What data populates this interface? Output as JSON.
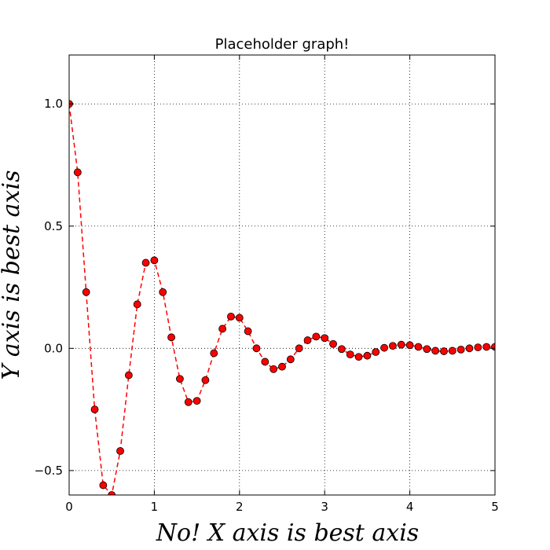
{
  "chart_data": {
    "type": "line",
    "title": "Placeholder graph!",
    "xlabel": "No! X axis is best axis",
    "ylabel": "Y axis is best axis",
    "xlim": [
      0,
      5
    ],
    "ylim": [
      -0.6,
      1.2
    ],
    "grid": true,
    "x_ticks": [
      0,
      1,
      2,
      3,
      4,
      5
    ],
    "x_tick_labels": [
      "0",
      "1",
      "2",
      "3",
      "4",
      "5"
    ],
    "y_ticks": [
      -0.5,
      0.0,
      0.5,
      1.0
    ],
    "y_tick_labels": [
      "−0.5",
      "0.0",
      "0.5",
      "1.0"
    ],
    "series": [
      {
        "line_style": "dashed",
        "line_color": "#ff0000",
        "marker": "circle",
        "marker_color": "#ff0000",
        "x": [
          0.0,
          0.1,
          0.2,
          0.3,
          0.4,
          0.5,
          0.6,
          0.7,
          0.8,
          0.9,
          1.0,
          1.1,
          1.2,
          1.3,
          1.4,
          1.5,
          1.6,
          1.7,
          1.8,
          1.9,
          2.0,
          2.1,
          2.2,
          2.3,
          2.4,
          2.5,
          2.6,
          2.7,
          2.8,
          2.9,
          3.0,
          3.1,
          3.2,
          3.3,
          3.4,
          3.5,
          3.6,
          3.7,
          3.8,
          3.9,
          4.0,
          4.1,
          4.2,
          4.3,
          4.4,
          4.5,
          4.6,
          4.7,
          4.8,
          4.9,
          5.0
        ],
        "y": [
          1.0,
          0.72,
          0.23,
          -0.25,
          -0.56,
          -0.6,
          -0.42,
          -0.11,
          0.18,
          0.35,
          0.36,
          0.23,
          0.045,
          -0.125,
          -0.22,
          -0.215,
          -0.13,
          -0.02,
          0.08,
          0.13,
          0.125,
          0.07,
          0.0,
          -0.055,
          -0.085,
          -0.075,
          -0.045,
          0.0,
          0.033,
          0.048,
          0.042,
          0.018,
          -0.003,
          -0.025,
          -0.035,
          -0.03,
          -0.015,
          0.002,
          0.01,
          0.015,
          0.013,
          0.006,
          -0.003,
          -0.01,
          -0.012,
          -0.01,
          -0.005,
          0.0,
          0.004,
          0.006,
          0.006
        ]
      }
    ]
  }
}
